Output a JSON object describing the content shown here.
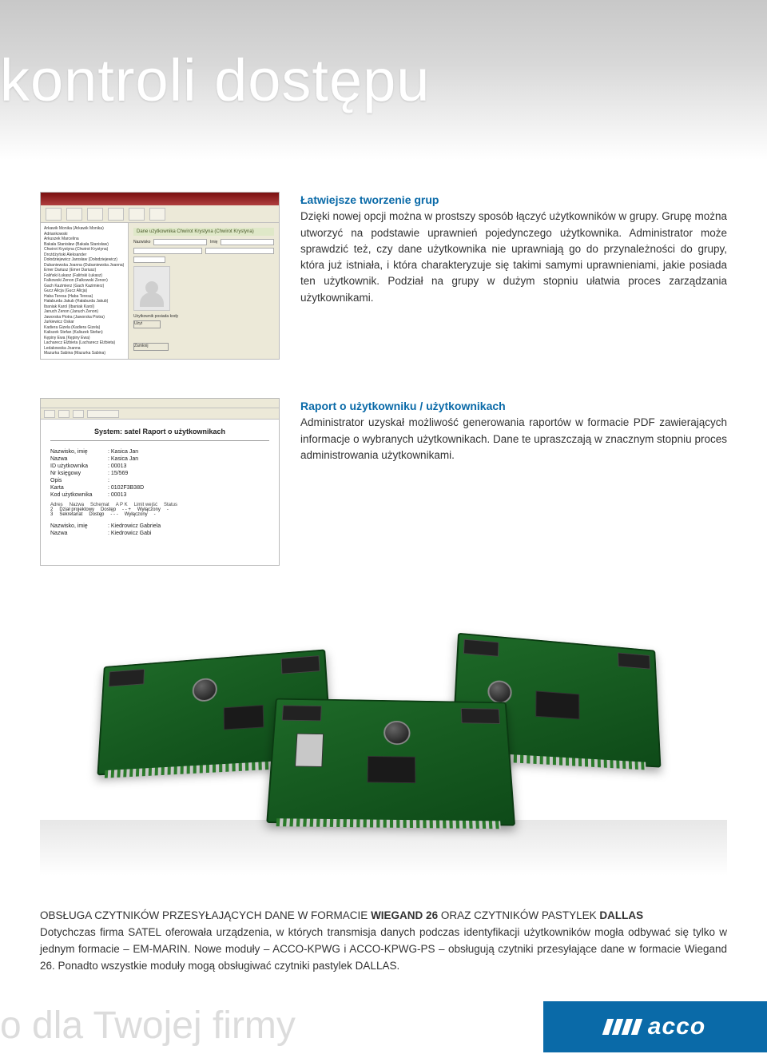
{
  "banner_title": "kontroli dostępu",
  "section1": {
    "heading": "Łatwiejsze tworzenie grup",
    "body": "Dzięki nowej opcji można w prostszy sposób łączyć użytkowników w grupy. Grupę można utworzyć na podstawie uprawnień pojedynczego użytkownika. Administrator może sprawdzić też, czy dane użytkownika nie uprawniają go do przynależności do grupy, która już istniała, i która charakteryzuje się takimi samymi uprawnieniami, jakie posiada ten użytkownik. Podział na grupy w dużym stopniu ułatwia proces zarządzania użytkownikami.",
    "window": {
      "header": "Dane użytkownika Chwirot Krystyna  (Chwirot Krystyna)",
      "side_items": [
        "Arkawik Monika (Arkawik Monika)",
        "Adriankowski",
        "Arkuszek Marcelina",
        "Bakała Stanisław (Bakała Stanisław)",
        "Chwirot Krystyna (Chwirot Krystyna)",
        "Drożdżyński Aleksander",
        "Dołodziejewicz Jarosław (Dołodziejewicz)",
        "Dubaniewska Joanna (Dubaniewska Joanna)",
        "Emer Dariusz (Emer Dariusz)",
        "Faliński Łukasz (Faliński Łukasz)",
        "Falkowski Zenon (Falkowski Zenon)",
        "Gach Kazimierz (Gach Kazimierz)",
        "Gucz Alicja (Gucz Alicja)",
        "Haba Teresa (Haba Teresa)",
        "Hałaburda Jakub (Hałaburda Jakub)",
        "Ibaniak Karol (Ibaniak Karol)",
        "Januch Zenon (Januch Zenon)",
        "Jaworska Piotra (Jaworska Piotra)",
        "Jurkiewicz Oskar",
        "Kadiera Gizela (Kadiera Gizela)",
        "Kaliszek Stefan (Kaliszek Stefan)",
        "Kępiny Ewa (Kępiny Ewa)",
        "Lacharecz Elżbieta (Lacharecz Elżbieta)",
        "Ledakowska Joanna",
        "Mazurka Sabina (Mazurka Sabina)"
      ],
      "labels": {
        "name": "Nazwisko",
        "firstname": "Imię",
        "groups": "Grupy",
        "entries": "Wejścia",
        "btn_user": "Użyt",
        "btn_close": "Zamknij"
      }
    }
  },
  "section2": {
    "heading": "Raport o użytkowniku / użytkownikach",
    "body": "Administrator uzyskał możliwość generowania raportów w formacie PDF zawierających informacje o wybranych użytkownikach. Dane te upraszczają w znacznym stopniu proces administrowania użytkownikami.",
    "report": {
      "title": "System: satel   Raport o użytkownikach",
      "rows": [
        {
          "k": "Nazwisko, imię",
          "v": "Kasica Jan"
        },
        {
          "k": "Nazwa",
          "v": "Kasica Jan"
        },
        {
          "k": "ID użytkownika",
          "v": "00013"
        },
        {
          "k": "Nr księgowy",
          "v": "15/569"
        },
        {
          "k": "Opis",
          "v": ""
        },
        {
          "k": "Karta",
          "v": "0102F3B38D"
        },
        {
          "k": "Kod użytkownika",
          "v": "00013"
        }
      ],
      "table_head": [
        "Adres",
        "Nazwa",
        "Schemat",
        "A  P  K",
        "Limit wejść",
        "Status"
      ],
      "table_rows": [
        [
          "2",
          "Dział projektowy",
          "Dostęp",
          "-  -  +",
          "Wyłączony",
          "-"
        ],
        [
          "3",
          "Sekretariat",
          "Dostęp",
          "-  -  -",
          "Wyłączony",
          "-"
        ]
      ],
      "rows2": [
        {
          "k": "Nazwisko, imię",
          "v": "Kiedrowicz Gabriela"
        },
        {
          "k": "Nazwa",
          "v": "Kiedrowicz Gabi"
        }
      ]
    }
  },
  "bottom": {
    "caps_prefix": "OBSŁUGA CZYTNIKÓW PRZESYŁAJĄCYCH DANE W FORMACIE ",
    "bold1": "WIEGAND 26",
    "caps_mid": " ORAZ CZYTNIKÓW PASTYLEK ",
    "bold2": "DALLAS",
    "body": "Dotychczas firma SATEL oferowała urządzenia, w których transmisja danych podczas identyfikacji użytkowników mogła odbywać się tylko w jednym formacie – EM-MARIN. Nowe moduły – ACCO-KPWG i ACCO-KPWG-PS – obsługują czytniki przesyłające dane w formacie Wiegand 26. Ponadto wszystkie moduły mogą obsługiwać czytniki pastylek DALLAS."
  },
  "footer_text": "o dla Twojej firmy",
  "logo_text": "acco",
  "colors": {
    "accent": "#0a6aa8",
    "text": "#333333",
    "board": "#1e6a28"
  }
}
